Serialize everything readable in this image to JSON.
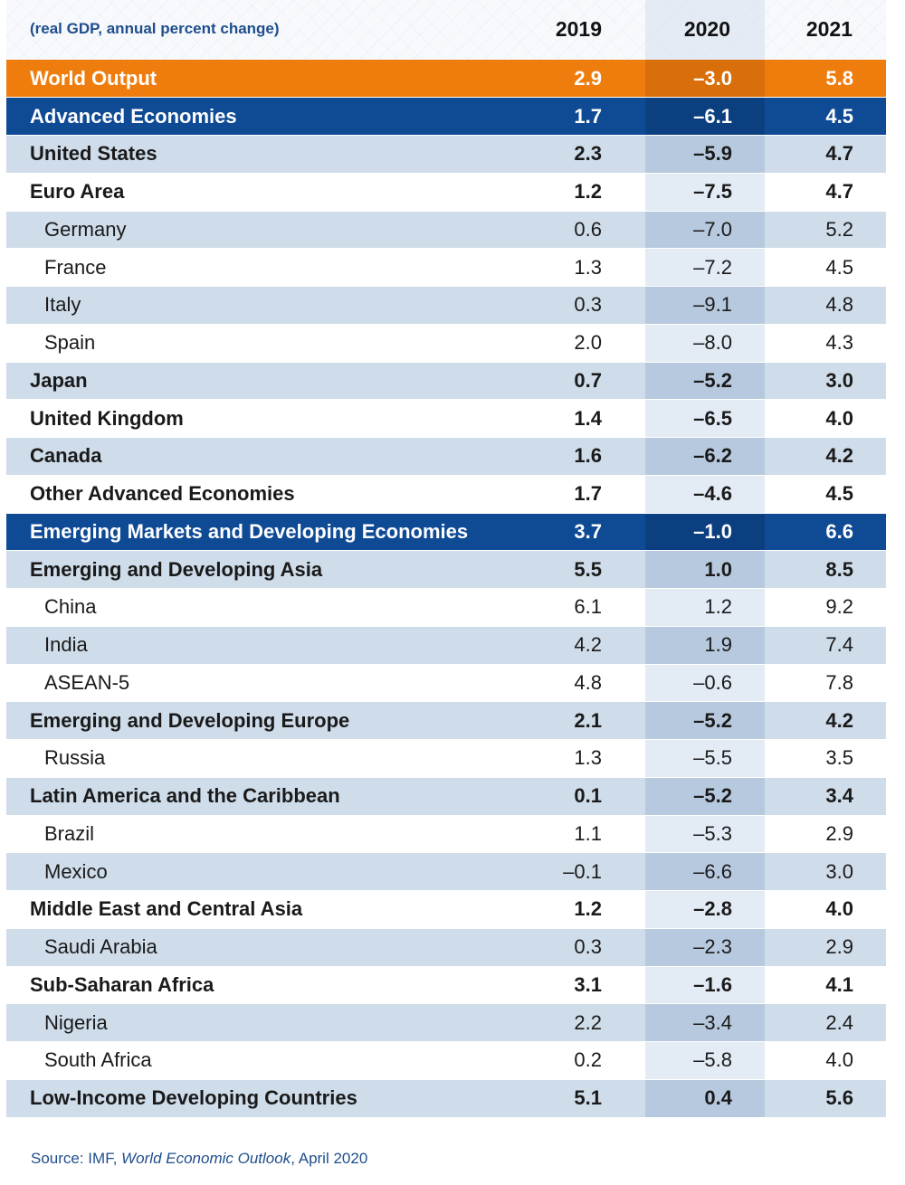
{
  "chart_data": {
    "type": "table",
    "subtitle": "(real GDP, annual percent change)",
    "columns": [
      "2019",
      "2020",
      "2021"
    ],
    "rows": [
      {
        "name": "World Output",
        "values": [
          "2.9",
          "–3.0",
          "5.8"
        ],
        "style": "orange",
        "indent": false
      },
      {
        "name": "Advanced Economies",
        "values": [
          "1.7",
          "–6.1",
          "4.5"
        ],
        "style": "blue",
        "indent": false
      },
      {
        "name": "United States",
        "values": [
          "2.3",
          "–5.9",
          "4.7"
        ],
        "style": "shade-bold",
        "indent": false
      },
      {
        "name": "Euro Area",
        "values": [
          "1.2",
          "–7.5",
          "4.7"
        ],
        "style": "plain-bold",
        "indent": false
      },
      {
        "name": "Germany",
        "values": [
          "0.6",
          "–7.0",
          "5.2"
        ],
        "style": "shade",
        "indent": true
      },
      {
        "name": "France",
        "values": [
          "1.3",
          "–7.2",
          "4.5"
        ],
        "style": "plain",
        "indent": true
      },
      {
        "name": "Italy",
        "values": [
          "0.3",
          "–9.1",
          "4.8"
        ],
        "style": "shade",
        "indent": true
      },
      {
        "name": "Spain",
        "values": [
          "2.0",
          "–8.0",
          "4.3"
        ],
        "style": "plain",
        "indent": true
      },
      {
        "name": "Japan",
        "values": [
          "0.7",
          "–5.2",
          "3.0"
        ],
        "style": "shade-bold",
        "indent": false
      },
      {
        "name": "United Kingdom",
        "values": [
          "1.4",
          "–6.5",
          "4.0"
        ],
        "style": "plain-bold",
        "indent": false
      },
      {
        "name": "Canada",
        "values": [
          "1.6",
          "–6.2",
          "4.2"
        ],
        "style": "shade-bold",
        "indent": false
      },
      {
        "name": "Other Advanced Economies",
        "values": [
          "1.7",
          "–4.6",
          "4.5"
        ],
        "style": "plain-bold",
        "indent": false
      },
      {
        "name": "Emerging Markets and Developing Economies",
        "values": [
          "3.7",
          "–1.0",
          "6.6"
        ],
        "style": "blue",
        "indent": false
      },
      {
        "name": "Emerging and Developing Asia",
        "values": [
          "5.5",
          "1.0",
          "8.5"
        ],
        "style": "shade-bold",
        "indent": false
      },
      {
        "name": "China",
        "values": [
          "6.1",
          "1.2",
          "9.2"
        ],
        "style": "plain",
        "indent": true
      },
      {
        "name": "India",
        "values": [
          "4.2",
          "1.9",
          "7.4"
        ],
        "style": "shade",
        "indent": true
      },
      {
        "name": "ASEAN-5",
        "values": [
          "4.8",
          "–0.6",
          "7.8"
        ],
        "style": "plain",
        "indent": true
      },
      {
        "name": "Emerging and Developing Europe",
        "values": [
          "2.1",
          "–5.2",
          "4.2"
        ],
        "style": "shade-bold",
        "indent": false
      },
      {
        "name": "Russia",
        "values": [
          "1.3",
          "–5.5",
          "3.5"
        ],
        "style": "plain",
        "indent": true
      },
      {
        "name": "Latin America and the Caribbean",
        "values": [
          "0.1",
          "–5.2",
          "3.4"
        ],
        "style": "shade-bold",
        "indent": false
      },
      {
        "name": "Brazil",
        "values": [
          "1.1",
          "–5.3",
          "2.9"
        ],
        "style": "plain",
        "indent": true
      },
      {
        "name": "Mexico",
        "values": [
          "–0.1",
          "–6.6",
          "3.0"
        ],
        "style": "shade",
        "indent": true
      },
      {
        "name": "Middle East and Central Asia",
        "values": [
          "1.2",
          "–2.8",
          "4.0"
        ],
        "style": "plain-bold",
        "indent": false
      },
      {
        "name": "Saudi Arabia",
        "values": [
          "0.3",
          "–2.3",
          "2.9"
        ],
        "style": "shade",
        "indent": true
      },
      {
        "name": "Sub-Saharan Africa",
        "values": [
          "3.1",
          "–1.6",
          "4.1"
        ],
        "style": "plain-bold",
        "indent": false
      },
      {
        "name": "Nigeria",
        "values": [
          "2.2",
          "–3.4",
          "2.4"
        ],
        "style": "shade",
        "indent": true
      },
      {
        "name": "South Africa",
        "values": [
          "0.2",
          "–5.8",
          "4.0"
        ],
        "style": "plain",
        "indent": true
      },
      {
        "name": "Low-Income Developing Countries",
        "values": [
          "5.1",
          "0.4",
          "5.6"
        ],
        "style": "shade-bold",
        "indent": false
      }
    ]
  },
  "source": {
    "prefix": "Source: IMF, ",
    "title": "World Economic Outlook",
    "suffix": ", April 2020"
  },
  "colors": {
    "orange": "#ef7d0e",
    "blue": "#0f4a95",
    "shade": "#cfdcea",
    "text_blue": "#1f4e8c"
  }
}
